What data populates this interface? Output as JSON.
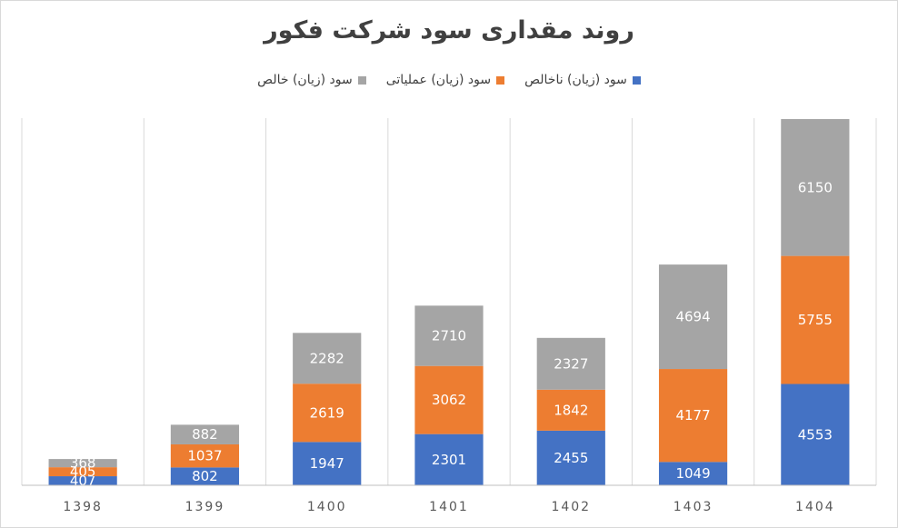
{
  "chart_data": {
    "type": "bar",
    "stacked": true,
    "title": "روند مقداری سود شرکت فکور",
    "categories": [
      "1398",
      "1399",
      "1400",
      "1401",
      "1402",
      "1403",
      "1404"
    ],
    "series": [
      {
        "name": "سود (زیان) ناخالص",
        "color": "#4472c4",
        "values": [
          407,
          802,
          1947,
          2301,
          2455,
          1049,
          4553
        ]
      },
      {
        "name": "سود (زیان) عملیاتی",
        "color": "#ed7d31",
        "values": [
          405,
          1037,
          2619,
          3062,
          1842,
          4177,
          5755
        ]
      },
      {
        "name": "سود (زیان) خالص",
        "color": "#a5a5a5",
        "values": [
          368,
          882,
          2282,
          2710,
          2327,
          4694,
          6150
        ]
      }
    ],
    "ylim": [
      0,
      16500
    ],
    "grid": "vertical",
    "legend_position": "top"
  }
}
